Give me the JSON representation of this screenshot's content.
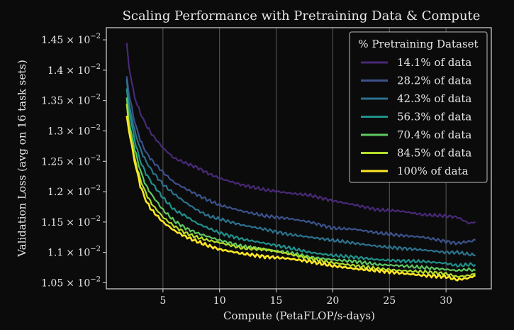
{
  "chart_data": {
    "type": "line",
    "title": "Scaling Performance with Pretraining Data & Compute",
    "xlabel": "Compute (PetaFLOP/s-days)",
    "ylabel": "Validation Loss (avg on 16 task sets)",
    "xlim": [
      0,
      34
    ],
    "ylim": [
      1.04,
      1.47
    ],
    "x_ticks": [
      5,
      10,
      15,
      20,
      25,
      30
    ],
    "y_ticks": [
      1.05,
      1.1,
      1.15,
      1.2,
      1.25,
      1.3,
      1.35,
      1.4,
      1.45
    ],
    "y_tick_labels": [
      "1.05",
      "1.1",
      "1.15",
      "1.2",
      "1.25",
      "1.3",
      "1.35",
      "1.4",
      "1.45"
    ],
    "y_tick_suffix": "× 10",
    "y_tick_exponent": "−2",
    "y_scale_note": "y values shown in units of 10^-2",
    "grid": "x-only",
    "legend_placement": "top-right",
    "legend_title": "% Pretraining Dataset",
    "colors": {
      "background": "#0b0b0b",
      "frame": "#d9d9d9",
      "grid": "#5a5a5a",
      "text": "#e6e6e6"
    },
    "series": [
      {
        "name": "14.1% of data",
        "color": "#482977",
        "x": [
          1.8,
          2,
          2.5,
          3,
          3.5,
          4,
          5,
          6,
          7,
          8,
          9,
          10,
          12,
          14,
          16,
          18,
          20,
          22,
          24,
          26,
          28,
          30,
          31,
          32,
          32.6
        ],
        "y": [
          1.445,
          1.405,
          1.355,
          1.33,
          1.31,
          1.295,
          1.272,
          1.255,
          1.247,
          1.24,
          1.23,
          1.222,
          1.211,
          1.203,
          1.198,
          1.194,
          1.185,
          1.178,
          1.17,
          1.168,
          1.162,
          1.16,
          1.158,
          1.148,
          1.15
        ]
      },
      {
        "name": "28.2% of data",
        "color": "#3b528b",
        "x": [
          1.8,
          2,
          2.5,
          3,
          3.5,
          4,
          5,
          6,
          7,
          8,
          9,
          10,
          12,
          14,
          16,
          18,
          20,
          22,
          24,
          26,
          28,
          30,
          31,
          32,
          32.6
        ],
        "y": [
          1.39,
          1.36,
          1.315,
          1.285,
          1.265,
          1.252,
          1.232,
          1.215,
          1.205,
          1.195,
          1.186,
          1.178,
          1.168,
          1.16,
          1.156,
          1.15,
          1.14,
          1.138,
          1.132,
          1.128,
          1.125,
          1.118,
          1.115,
          1.118,
          1.12
        ]
      },
      {
        "name": "42.3% of data",
        "color": "#2c728e",
        "x": [
          1.8,
          2,
          2.5,
          3,
          3.5,
          4,
          5,
          6,
          7,
          8,
          9,
          10,
          12,
          14,
          16,
          18,
          20,
          22,
          24,
          26,
          28,
          30,
          31,
          32,
          32.6
        ],
        "y": [
          1.385,
          1.345,
          1.3,
          1.27,
          1.25,
          1.235,
          1.212,
          1.196,
          1.182,
          1.17,
          1.16,
          1.155,
          1.145,
          1.138,
          1.13,
          1.125,
          1.12,
          1.115,
          1.11,
          1.107,
          1.104,
          1.1,
          1.1,
          1.097,
          1.095
        ]
      },
      {
        "name": "56.3% of data",
        "color": "#21918c",
        "x": [
          1.8,
          2,
          2.5,
          3,
          3.5,
          4,
          5,
          6,
          7,
          8,
          9,
          10,
          12,
          14,
          16,
          18,
          20,
          22,
          24,
          26,
          28,
          30,
          31,
          32,
          32.6
        ],
        "y": [
          1.37,
          1.335,
          1.285,
          1.25,
          1.23,
          1.215,
          1.19,
          1.17,
          1.16,
          1.148,
          1.14,
          1.132,
          1.122,
          1.115,
          1.108,
          1.1,
          1.095,
          1.092,
          1.088,
          1.086,
          1.085,
          1.082,
          1.078,
          1.08,
          1.08
        ]
      },
      {
        "name": "70.4% of data",
        "color": "#5ec962",
        "x": [
          1.8,
          2,
          2.5,
          3,
          3.5,
          4,
          5,
          6,
          7,
          8,
          9,
          10,
          12,
          14,
          16,
          18,
          20,
          22,
          24,
          26,
          28,
          30,
          31,
          32,
          32.6
        ],
        "y": [
          1.355,
          1.315,
          1.27,
          1.235,
          1.21,
          1.195,
          1.17,
          1.152,
          1.14,
          1.132,
          1.126,
          1.12,
          1.11,
          1.105,
          1.1,
          1.092,
          1.088,
          1.085,
          1.08,
          1.078,
          1.075,
          1.072,
          1.07,
          1.072,
          1.07
        ]
      },
      {
        "name": "84.5% of data",
        "color": "#b5de2b",
        "x": [
          1.8,
          2,
          2.5,
          3,
          3.5,
          4,
          5,
          6,
          7,
          8,
          9,
          10,
          12,
          14,
          16,
          18,
          20,
          22,
          24,
          26,
          28,
          30,
          31,
          32,
          32.6
        ],
        "y": [
          1.345,
          1.305,
          1.255,
          1.22,
          1.197,
          1.18,
          1.158,
          1.143,
          1.132,
          1.125,
          1.12,
          1.116,
          1.107,
          1.105,
          1.098,
          1.09,
          1.083,
          1.078,
          1.073,
          1.07,
          1.068,
          1.065,
          1.06,
          1.062,
          1.065
        ]
      },
      {
        "name": "100% of data",
        "color": "#fde725",
        "x": [
          1.8,
          2,
          2.5,
          3,
          3.5,
          4,
          5,
          6,
          7,
          8,
          9,
          10,
          12,
          14,
          16,
          18,
          20,
          22,
          24,
          26,
          28,
          30,
          31,
          32,
          32.6
        ],
        "y": [
          1.325,
          1.3,
          1.25,
          1.21,
          1.185,
          1.17,
          1.15,
          1.136,
          1.126,
          1.118,
          1.111,
          1.105,
          1.098,
          1.093,
          1.09,
          1.085,
          1.078,
          1.073,
          1.07,
          1.066,
          1.062,
          1.06,
          1.055,
          1.058,
          1.062
        ]
      }
    ]
  }
}
